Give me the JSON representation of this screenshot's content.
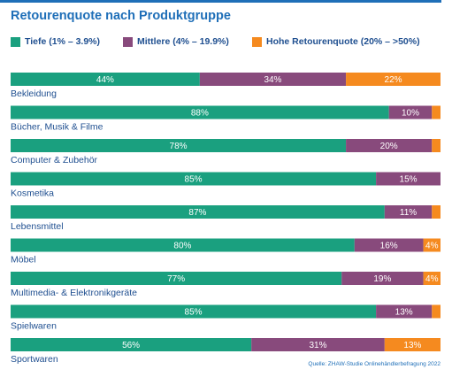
{
  "title": "Retourenquote nach Produktgruppe",
  "legend": [
    {
      "label": "Tiefe (1% – 3.9%)",
      "color": "#1aa07f"
    },
    {
      "label": "Mittlere (4% – 19.9%)",
      "color": "#884a7c"
    },
    {
      "label": "Hohe Retourenquote (20% – >50%)",
      "color": "#f58a1f"
    }
  ],
  "source": "Quelle: ZHAW-Studie Onlinehändlerbefragung 2022",
  "chart_data": {
    "type": "bar",
    "orientation": "horizontal",
    "stacked": true,
    "percent": true,
    "categories": [
      "Bekleidung",
      "Bücher, Musik & Filme",
      "Computer & Zubehör",
      "Kosmetika",
      "Lebensmittel",
      "Möbel",
      "Multimedia- & Elektronikgeräte",
      "Spielwaren",
      "Sportwaren"
    ],
    "series": [
      {
        "name": "Tiefe (1% – 3.9%)",
        "color": "#1aa07f",
        "values": [
          44,
          88,
          78,
          85,
          87,
          80,
          77,
          85,
          56
        ]
      },
      {
        "name": "Mittlere (4% – 19.9%)",
        "color": "#884a7c",
        "values": [
          34,
          10,
          20,
          15,
          11,
          16,
          19,
          13,
          31
        ]
      },
      {
        "name": "Hohe Retourenquote (20% – >50%)",
        "color": "#f58a1f",
        "values": [
          22,
          2,
          2,
          0,
          2,
          4,
          4,
          2,
          13
        ]
      }
    ],
    "data_labels": [
      [
        "44%",
        "34%",
        "22%"
      ],
      [
        "88%",
        "10%",
        ""
      ],
      [
        "78%",
        "20%",
        ""
      ],
      [
        "85%",
        "15%",
        ""
      ],
      [
        "87%",
        "11%",
        ""
      ],
      [
        "80%",
        "16%",
        "4%"
      ],
      [
        "77%",
        "19%",
        "4%"
      ],
      [
        "85%",
        "13%",
        ""
      ],
      [
        "56%",
        "31%",
        "13%"
      ]
    ],
    "xlim": [
      0,
      100
    ],
    "grid": false,
    "legend_position": "top"
  }
}
